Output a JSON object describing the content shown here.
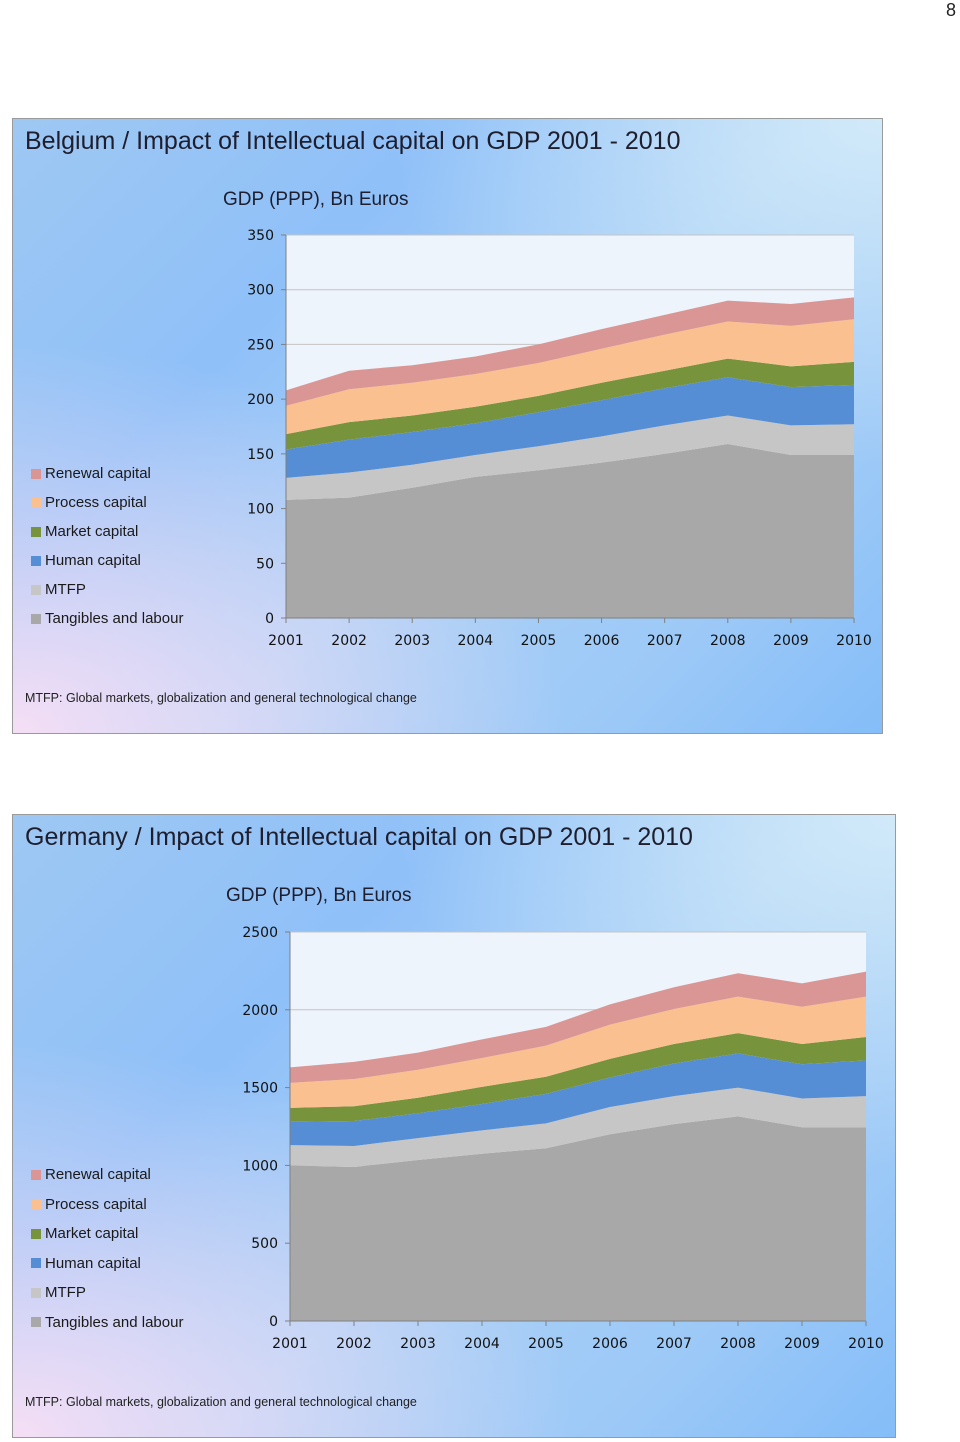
{
  "page_number": "8",
  "colors": {
    "Tangibles and labour": "#a8a8a8",
    "MTFP": "#c6c6c6",
    "Human capital": "#558ed5",
    "Market capital": "#77933c",
    "Process capital": "#fac090",
    "Renewal capital": "#d99694"
  },
  "chart_data": [
    {
      "type": "area",
      "stacked": true,
      "title": "Belgium / Impact of Intellectual capital on GDP 2001 -  2010",
      "subtitle": "GDP (PPP), Bn Euros",
      "footnote": "MTFP: Global markets, globalization and general technological change",
      "x": [
        "2001",
        "2002",
        "2003",
        "2004",
        "2005",
        "2006",
        "2007",
        "2008",
        "2009",
        "2010"
      ],
      "ylim": [
        0,
        350
      ],
      "yticks": [
        "0",
        "50",
        "100",
        "150",
        "200",
        "250",
        "300",
        "350"
      ],
      "yticks_values": [
        0,
        50,
        100,
        150,
        200,
        250,
        300,
        350
      ],
      "legend_position": "left",
      "grid": true,
      "series": [
        {
          "name": "Tangibles and labour",
          "values": [
            108,
            110,
            119,
            129,
            135,
            142,
            150,
            159,
            149,
            149
          ]
        },
        {
          "name": "MTFP",
          "values": [
            20,
            23,
            21,
            20,
            22,
            24,
            26,
            26,
            27,
            28
          ]
        },
        {
          "name": "Human capital",
          "values": [
            26,
            30,
            30,
            29,
            31,
            33,
            34,
            35,
            35,
            36
          ]
        },
        {
          "name": "Market capital",
          "values": [
            14,
            16,
            15,
            15,
            15,
            16,
            16,
            17,
            19,
            21
          ]
        },
        {
          "name": "Process capital",
          "values": [
            26,
            30,
            30,
            30,
            30,
            31,
            33,
            34,
            37,
            39
          ]
        },
        {
          "name": "Renewal capital",
          "values": [
            14,
            17,
            16,
            16,
            17,
            18,
            18,
            19,
            20,
            20
          ]
        }
      ]
    },
    {
      "type": "area",
      "stacked": true,
      "title": "Germany / Impact of Intellectual capital on GDP 2001 -  2010",
      "subtitle": "GDP (PPP), Bn Euros",
      "footnote": "MTFP: Global markets, globalization and general technological change",
      "x": [
        "2001",
        "2002",
        "2003",
        "2004",
        "2005",
        "2006",
        "2007",
        "2008",
        "2009",
        "2010"
      ],
      "ylim": [
        0,
        2500
      ],
      "yticks": [
        "0",
        "500",
        "1000",
        "1500",
        "2000",
        "2500"
      ],
      "yticks_values": [
        0,
        500,
        1000,
        1500,
        2000,
        2500
      ],
      "legend_position": "left",
      "grid": true,
      "series": [
        {
          "name": "Tangibles and labour",
          "values": [
            1000,
            990,
            1035,
            1075,
            1110,
            1200,
            1265,
            1315,
            1245,
            1245
          ]
        },
        {
          "name": "MTFP",
          "values": [
            130,
            135,
            140,
            150,
            160,
            175,
            180,
            185,
            185,
            200
          ]
        },
        {
          "name": "Human capital",
          "values": [
            150,
            160,
            160,
            170,
            190,
            190,
            210,
            220,
            220,
            230
          ]
        },
        {
          "name": "Market capital",
          "values": [
            90,
            95,
            100,
            110,
            110,
            120,
            125,
            130,
            130,
            150
          ]
        },
        {
          "name": "Process capital",
          "values": [
            160,
            175,
            180,
            185,
            200,
            220,
            225,
            235,
            240,
            260
          ]
        },
        {
          "name": "Renewal capital",
          "values": [
            100,
            110,
            110,
            120,
            120,
            130,
            140,
            150,
            150,
            160
          ]
        }
      ]
    }
  ]
}
